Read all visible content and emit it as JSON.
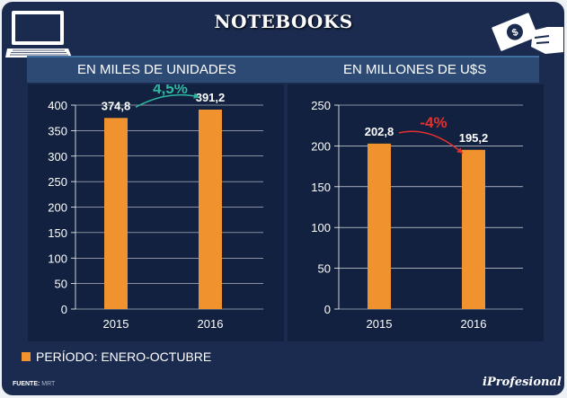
{
  "title": "NOTEBOOKS",
  "icons": {
    "laptop": "laptop-icon",
    "money": "money-hand-icon"
  },
  "headers": {
    "left": "EN MILES DE UNIDADES",
    "right": "EN MILLONES DE U$S"
  },
  "legend_label": "PERÍODO: ENERO-OCTUBRE",
  "source_label": "FUENTE:",
  "source_value": "MRT",
  "brand": "iProfesional",
  "colors": {
    "bar": "#f0922e",
    "up": "#2fb7a0",
    "down": "#e53030"
  },
  "chart_data": [
    {
      "type": "bar",
      "title": "EN MILES DE UNIDADES",
      "categories": [
        "2015",
        "2016"
      ],
      "values": [
        374.8,
        391.2
      ],
      "value_labels": [
        "374,8",
        "391,2"
      ],
      "change_label": "4,5%",
      "trend": "up",
      "ylim": [
        0,
        400
      ],
      "yticks": [
        0,
        50,
        100,
        150,
        200,
        250,
        300,
        350,
        400
      ]
    },
    {
      "type": "bar",
      "title": "EN MILLONES DE U$S",
      "categories": [
        "2015",
        "2016"
      ],
      "values": [
        202.8,
        195.2
      ],
      "value_labels": [
        "202,8",
        "195,2"
      ],
      "change_label": "-4%",
      "trend": "down",
      "ylim": [
        0,
        250
      ],
      "yticks": [
        0,
        50,
        100,
        150,
        200,
        250
      ]
    }
  ]
}
